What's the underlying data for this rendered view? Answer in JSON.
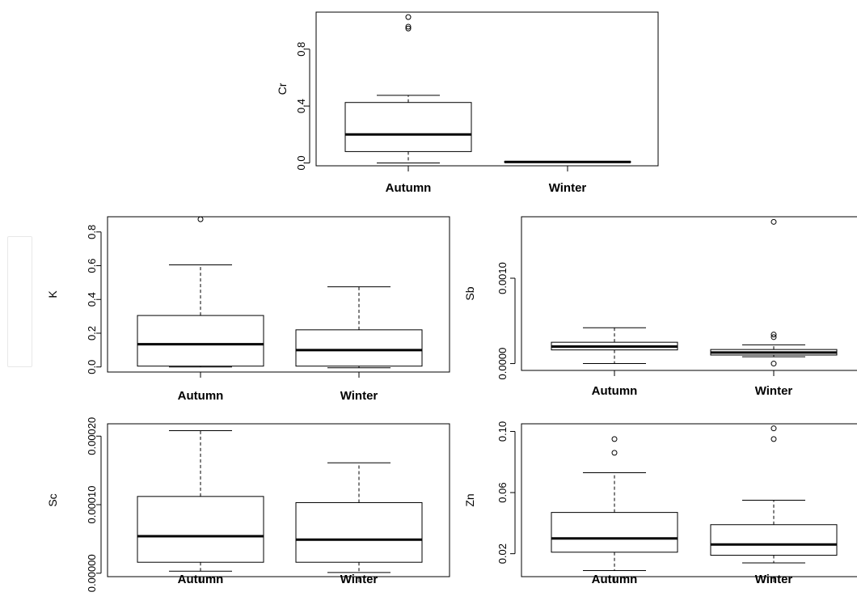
{
  "chart_data": [
    {
      "type": "box",
      "ylabel": "Cr",
      "categories": [
        "Autumn",
        "Winter"
      ],
      "yticks": [
        "0.0",
        "0.4",
        "0.8"
      ],
      "yticks_values": [
        0.0,
        0.4,
        0.8
      ],
      "ylim": [
        -0.02,
        1.06
      ],
      "boxes": [
        {
          "category": "Autumn",
          "whisker_low": 0.0,
          "q1": 0.08,
          "median": 0.2,
          "q3": 0.425,
          "whisker_high": 0.475,
          "outliers": [
            0.945,
            0.958,
            1.025
          ]
        },
        {
          "category": "Winter",
          "whisker_low": 0.005,
          "q1": 0.005,
          "median": 0.007,
          "q3": 0.009,
          "whisker_high": 0.009,
          "outliers": []
        }
      ]
    },
    {
      "type": "box",
      "ylabel": "K",
      "categories": [
        "Autumn",
        "Winter"
      ],
      "yticks": [
        "0.0",
        "0.2",
        "0.4",
        "0.6",
        "0.8"
      ],
      "yticks_values": [
        0.0,
        0.2,
        0.4,
        0.6,
        0.8
      ],
      "ylim": [
        -0.03,
        0.89
      ],
      "boxes": [
        {
          "category": "Autumn",
          "whisker_low": 0.0,
          "q1": 0.005,
          "median": 0.135,
          "q3": 0.305,
          "whisker_high": 0.605,
          "outliers": [
            0.875
          ]
        },
        {
          "category": "Winter",
          "whisker_low": -0.005,
          "q1": 0.005,
          "median": 0.1,
          "q3": 0.22,
          "whisker_high": 0.475,
          "outliers": []
        }
      ]
    },
    {
      "type": "box",
      "ylabel": "Sb",
      "categories": [
        "Autumn",
        "Winter"
      ],
      "yticks": [
        "0.0000",
        "0.0010"
      ],
      "yticks_values": [
        0.0,
        0.001
      ],
      "ylim": [
        -8e-05,
        0.00172
      ],
      "boxes": [
        {
          "category": "Autumn",
          "whisker_low": 0.0,
          "q1": 0.00016,
          "median": 0.0002,
          "q3": 0.00025,
          "whisker_high": 0.00042,
          "outliers": []
        },
        {
          "category": "Winter",
          "whisker_low": 8e-05,
          "q1": 0.0001,
          "median": 0.00013,
          "q3": 0.000165,
          "whisker_high": 0.00022,
          "outliers": [
            0.0,
            0.00031,
            0.00034,
            0.00166
          ]
        }
      ]
    },
    {
      "type": "box",
      "ylabel": "Sc",
      "categories": [
        "Autumn",
        "Winter"
      ],
      "yticks": [
        "0.00000",
        "0.00010",
        "0.00020"
      ],
      "yticks_values": [
        0.0,
        0.0001,
        0.0002
      ],
      "ylim": [
        -5e-06,
        0.000218
      ],
      "boxes": [
        {
          "category": "Autumn",
          "whisker_low": 3e-06,
          "q1": 1.6e-05,
          "median": 5.4e-05,
          "q3": 0.000112,
          "whisker_high": 0.000208,
          "outliers": []
        },
        {
          "category": "Winter",
          "whisker_low": 1e-06,
          "q1": 1.6e-05,
          "median": 4.9e-05,
          "q3": 0.000103,
          "whisker_high": 0.000161,
          "outliers": []
        }
      ]
    },
    {
      "type": "box",
      "ylabel": "Zn",
      "categories": [
        "Autumn",
        "Winter"
      ],
      "yticks": [
        "0.02",
        "0.06",
        "0.10"
      ],
      "yticks_values": [
        0.02,
        0.06,
        0.1
      ],
      "ylim": [
        0.005,
        0.105
      ],
      "boxes": [
        {
          "category": "Autumn",
          "whisker_low": 0.009,
          "q1": 0.021,
          "median": 0.03,
          "q3": 0.047,
          "whisker_high": 0.073,
          "outliers": [
            0.086,
            0.095
          ]
        },
        {
          "category": "Winter",
          "whisker_low": 0.014,
          "q1": 0.019,
          "median": 0.026,
          "q3": 0.039,
          "whisker_high": 0.055,
          "outliers": [
            0.095,
            0.102
          ]
        }
      ]
    }
  ]
}
